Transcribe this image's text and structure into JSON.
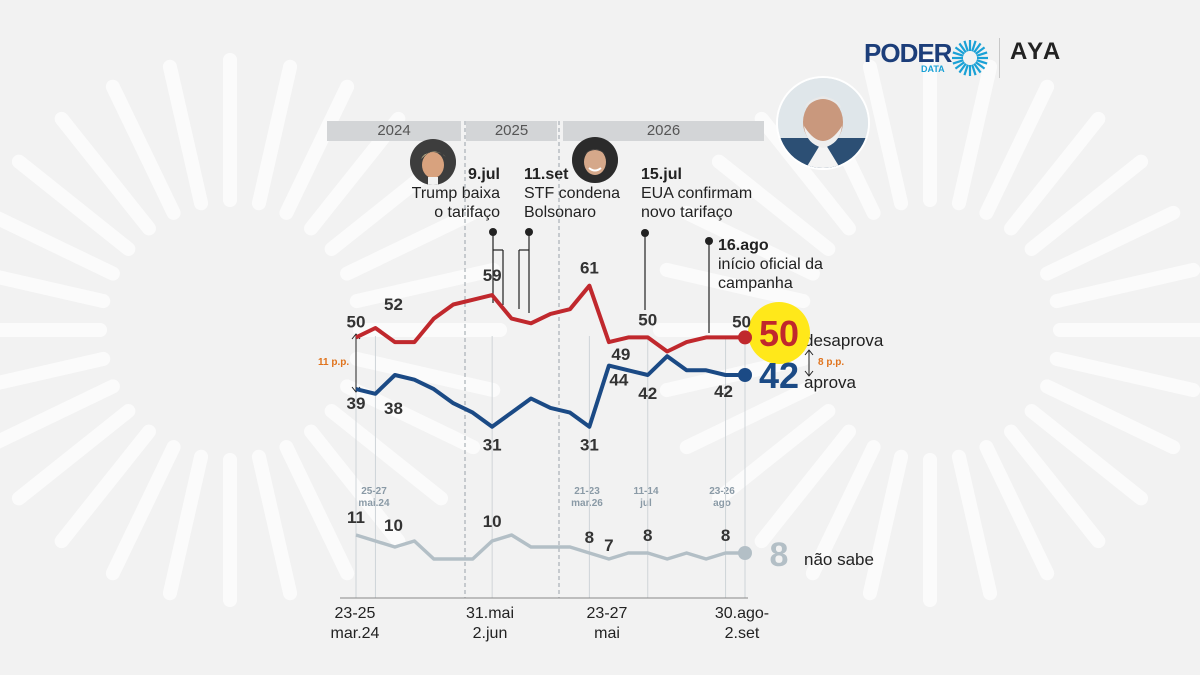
{
  "brand": {
    "poder": "PODER",
    "data": "DATA",
    "partner": "AYA"
  },
  "years": [
    "2024",
    "2025",
    "2026"
  ],
  "events": [
    {
      "date": "9.jul",
      "text1": "Trump baixa",
      "text2": "o tarifaço",
      "icon": "trump-avatar-icon"
    },
    {
      "date": "11.set",
      "text1": "STF condena",
      "text2": "Bolsonaro",
      "icon": "bolsonaro-avatar-icon"
    },
    {
      "date": "15.jul",
      "text1": "EUA confirmam",
      "text2": "novo tarifaço"
    },
    {
      "date": "16.ago",
      "text1": "início oficial da",
      "text2": "campanha"
    }
  ],
  "gap_labels": {
    "start": "11 p.p.",
    "end": "8 p.p."
  },
  "end_labels": {
    "desaprova": "desaprova",
    "aprova": "aprova",
    "nao_sabe": "não sabe"
  },
  "x_labels": [
    {
      "l1": "23-25",
      "l2": "mar.24"
    },
    {
      "l1": "31.mai",
      "l2": "2.jun"
    },
    {
      "l1": "23-27",
      "l2": "mai"
    },
    {
      "l1": "30.ago-",
      "l2": "2.set"
    }
  ],
  "survey_labels": [
    {
      "l1": "25-27",
      "l2": "mai.24"
    },
    {
      "l1": "21-23",
      "l2": "mar.26"
    },
    {
      "l1": "11-14",
      "l2": "jul"
    },
    {
      "l1": "23-26",
      "l2": "ago"
    }
  ],
  "colors": {
    "desaprova": "#c0282d",
    "aprova": "#1b4a85",
    "nao_sabe": "#b3bfc6",
    "highlight": "#ffe81a",
    "event_line": "#222222"
  },
  "chart_data": {
    "type": "line",
    "title": "",
    "xlabel": "",
    "ylabel": "",
    "n_surveys": 21,
    "series": [
      {
        "name": "desaprova",
        "values": [
          50,
          52,
          49,
          49,
          54,
          57,
          58,
          59,
          54,
          53,
          55,
          56,
          61,
          49,
          50,
          50,
          47,
          49,
          50,
          50,
          50
        ]
      },
      {
        "name": "aprova",
        "values": [
          39,
          38,
          42,
          41,
          39,
          36,
          34,
          31,
          34,
          37,
          35,
          34,
          31,
          44,
          43,
          42,
          46,
          43,
          43,
          42,
          42
        ]
      },
      {
        "name": "não sabe",
        "values": [
          11,
          10,
          9,
          10,
          7,
          7,
          7,
          10,
          11,
          9,
          9,
          9,
          8,
          7,
          8,
          8,
          7,
          8,
          7,
          8,
          8
        ]
      }
    ],
    "point_labels": [
      {
        "series": 0,
        "index": 0,
        "text": "50"
      },
      {
        "series": 0,
        "index": 1,
        "text": "52"
      },
      {
        "series": 0,
        "index": 7,
        "text": "59"
      },
      {
        "series": 0,
        "index": 12,
        "text": "61"
      },
      {
        "series": 0,
        "index": 13,
        "text": "49"
      },
      {
        "series": 0,
        "index": 15,
        "text": "50"
      },
      {
        "series": 0,
        "index": 19,
        "text": "50"
      },
      {
        "series": 1,
        "index": 0,
        "text": "39"
      },
      {
        "series": 1,
        "index": 1,
        "text": "38"
      },
      {
        "series": 1,
        "index": 7,
        "text": "31"
      },
      {
        "series": 1,
        "index": 12,
        "text": "31"
      },
      {
        "series": 1,
        "index": 13,
        "text": "44"
      },
      {
        "series": 1,
        "index": 15,
        "text": "42"
      },
      {
        "series": 1,
        "index": 19,
        "text": "42"
      },
      {
        "series": 2,
        "index": 0,
        "text": "11"
      },
      {
        "series": 2,
        "index": 1,
        "text": "10"
      },
      {
        "series": 2,
        "index": 7,
        "text": "10"
      },
      {
        "series": 2,
        "index": 12,
        "text": "8"
      },
      {
        "series": 2,
        "index": 13,
        "text": "7"
      },
      {
        "series": 2,
        "index": 15,
        "text": "8"
      },
      {
        "series": 2,
        "index": 19,
        "text": "8"
      }
    ],
    "end_values": {
      "desaprova": "50",
      "aprova": "42",
      "nao_sabe": "8"
    }
  }
}
